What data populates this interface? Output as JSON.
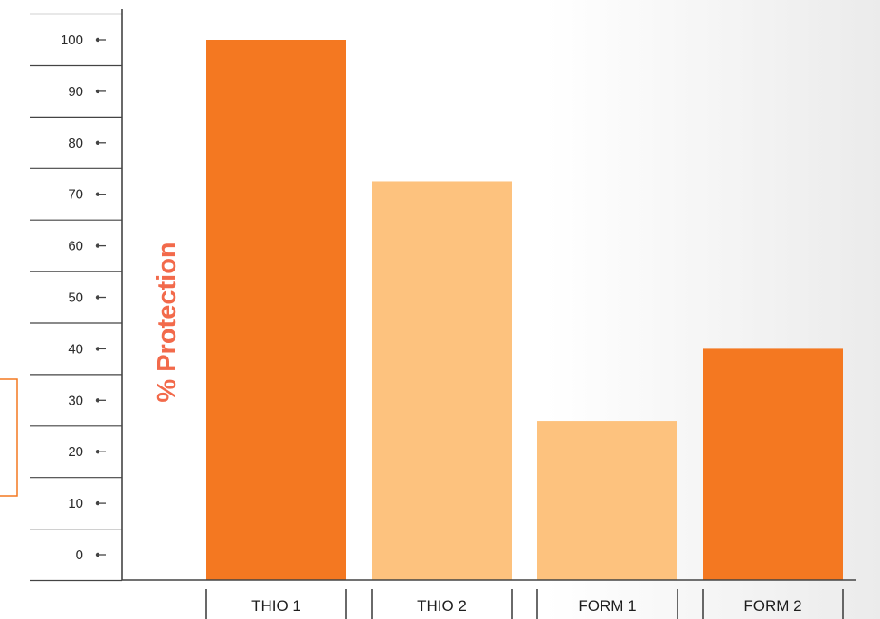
{
  "chart_data": {
    "type": "bar",
    "title": "",
    "xlabel": "",
    "ylabel": "% Protection",
    "ylim": [
      0,
      100
    ],
    "yticks": [
      0,
      10,
      20,
      30,
      40,
      50,
      60,
      70,
      80,
      90,
      100
    ],
    "categories": [
      "THIO 1",
      "THIO 2",
      "FORM 1",
      "FORM 2"
    ],
    "values": [
      100,
      72.5,
      26,
      40
    ],
    "colors": [
      "#f47821",
      "#fdc27e",
      "#fdc27e",
      "#f47821"
    ],
    "axis_color": "#444444",
    "ylabel_color": "#f26a4b",
    "bracket_color": "#f47821",
    "grid": false
  }
}
